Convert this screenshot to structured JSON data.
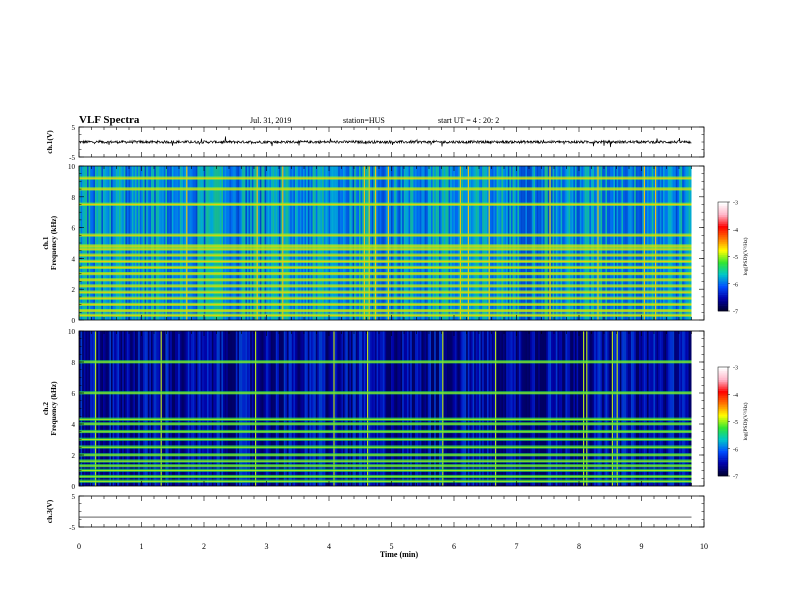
{
  "header": {
    "title": "VLF Spectra",
    "date": "Jul. 31, 2019",
    "station": "station=HUS",
    "start": "start UT =  4 : 20: 2"
  },
  "chart_data": [
    {
      "type": "line",
      "panel": "ch1-waveform",
      "ylabel": "ch.1(V)",
      "ylim": [
        -5,
        5
      ],
      "ytick_labels": [
        "5",
        "-5"
      ],
      "x_range": [
        0,
        9.8
      ],
      "baseline": 0,
      "line_color": "#000000"
    },
    {
      "type": "heatmap",
      "panel": "ch1-spectrogram",
      "ylabel": "ch.1\nFrequency (kHz)",
      "ylim": [
        0,
        10
      ],
      "ytick_labels": [
        "0",
        "2",
        "4",
        "6",
        "8",
        "10"
      ],
      "x_range": [
        0,
        9.8
      ],
      "colorbar": {
        "label": "log(PSD)(V²/Hz)",
        "range": [
          -7,
          -3
        ],
        "tick_labels": [
          "-3",
          "-4",
          "-5",
          "-6",
          "-7"
        ]
      },
      "band_frequencies_khz": [
        0.3,
        0.6,
        1.0,
        1.4,
        1.8,
        2.2,
        2.6,
        3.0,
        3.4,
        3.8,
        4.2,
        4.6,
        4.8,
        5.5,
        7.5,
        8.5,
        9.2
      ],
      "background_level": -5.9,
      "band_level": -5.0
    },
    {
      "type": "heatmap",
      "panel": "ch2-spectrogram",
      "ylabel": "ch.2\nFrequency (kHz)",
      "ylim": [
        0,
        10
      ],
      "ytick_labels": [
        "0",
        "2",
        "4",
        "6",
        "8",
        "10"
      ],
      "x_range": [
        0,
        9.8
      ],
      "colorbar": {
        "label": "log(PSD)(V²/Hz)",
        "range": [
          -7,
          -3
        ],
        "tick_labels": [
          "-3",
          "-4",
          "-5",
          "-6",
          "-7"
        ]
      },
      "band_frequencies_khz": [
        0.3,
        0.6,
        1.0,
        1.3,
        1.6,
        2.0,
        2.5,
        3.0,
        3.5,
        4.0,
        4.3,
        6.0,
        8.0
      ],
      "background_level": -6.6,
      "band_level": -5.3
    },
    {
      "type": "line",
      "panel": "ch3-waveform",
      "ylabel": "ch.3(V)",
      "ylim": [
        -5,
        5
      ],
      "ytick_labels": [
        "5",
        "-5"
      ],
      "x_range": [
        0,
        9.8
      ],
      "constant_value": -1.8,
      "line_color": "#000000"
    }
  ],
  "xaxis": {
    "label": "Time (min)",
    "range": [
      0,
      10
    ],
    "tick_labels": [
      "0",
      "1",
      "2",
      "3",
      "4",
      "5",
      "6",
      "7",
      "8",
      "9",
      "10"
    ]
  },
  "colors": {
    "colormap": [
      "#000033",
      "#0000aa",
      "#0050ff",
      "#00c8c8",
      "#32e632",
      "#ffff00",
      "#ff7800",
      "#ff0000",
      "#ffb4c8",
      "#ffffff"
    ],
    "axis": "#000000"
  }
}
